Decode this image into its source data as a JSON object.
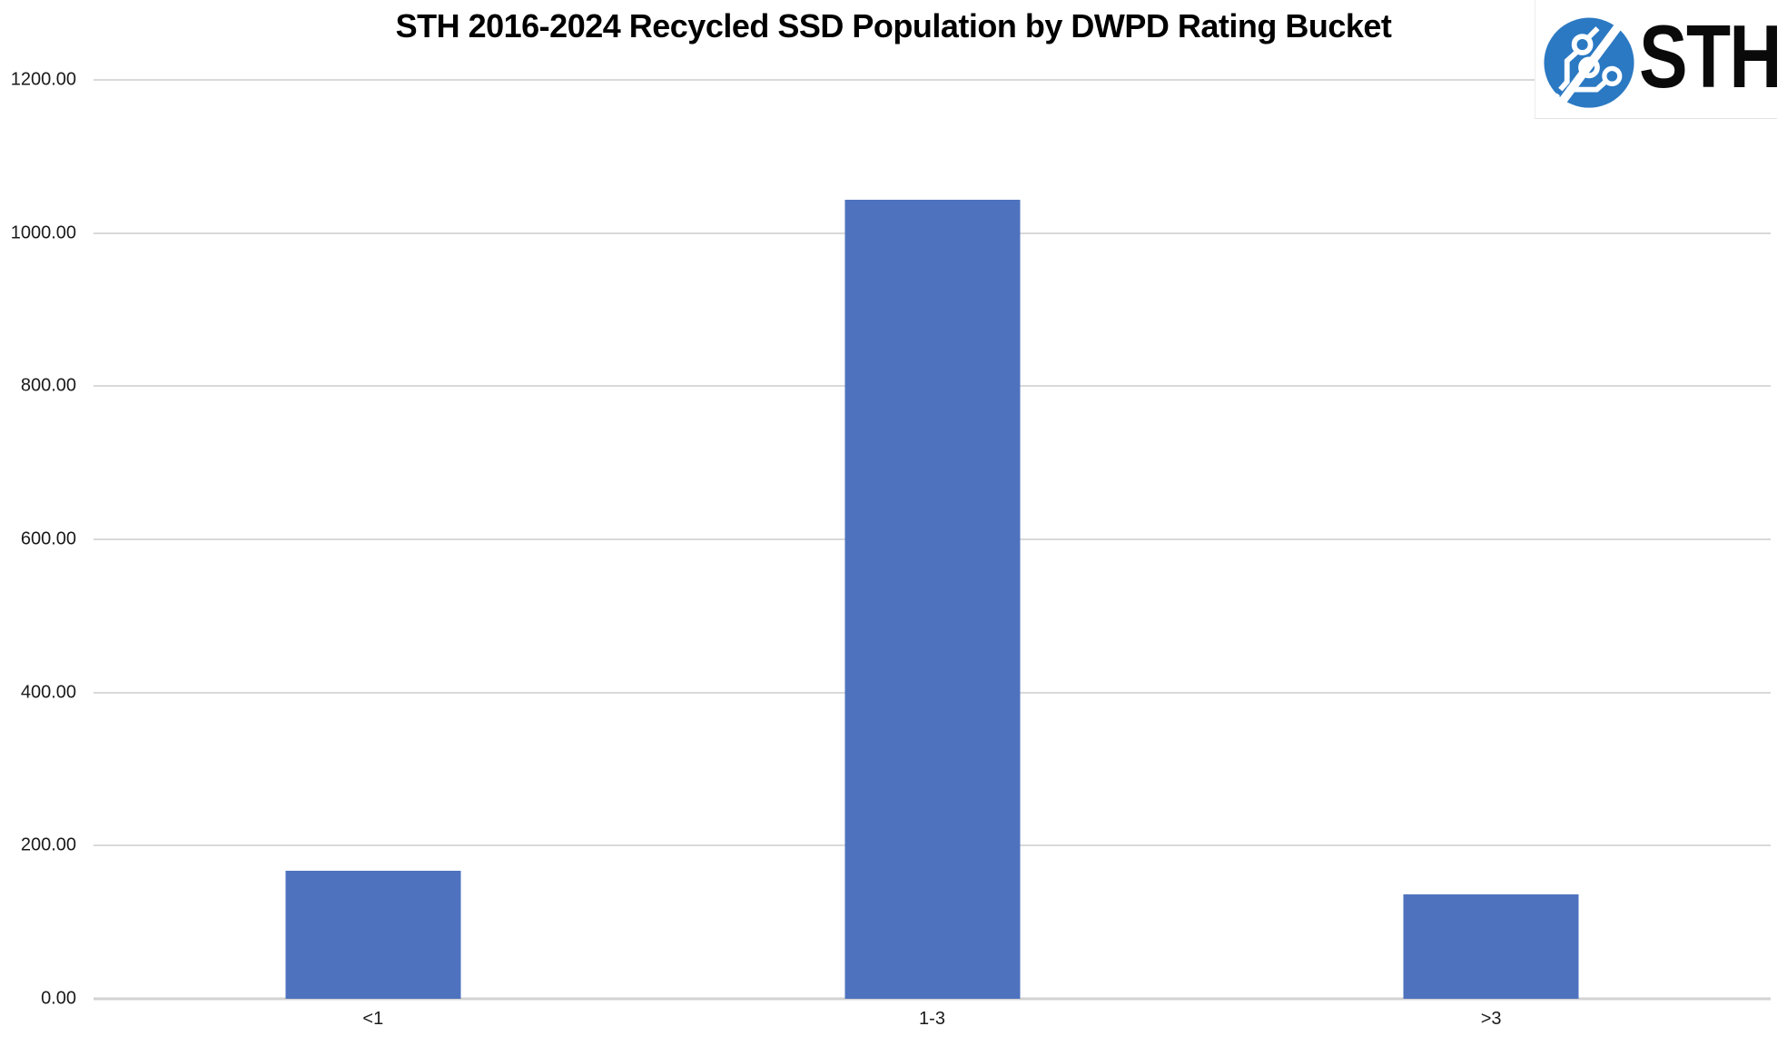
{
  "page": {
    "background": "#ffffff"
  },
  "header": {
    "title": "STH 2016-2024 Recycled SSD Population by DWPD Rating Bucket"
  },
  "logo": {
    "text": "STH",
    "circle_color": "#2B79C3",
    "trace_color": "#ffffff",
    "text_color": "#0a0a0a"
  },
  "chart_data": {
    "type": "bar",
    "title": "STH 2016-2024 Recycled SSD Population by DWPD Rating Bucket",
    "categories": [
      "<1",
      "1-3",
      ">3"
    ],
    "values": [
      167,
      1044,
      136
    ],
    "xlabel": "",
    "ylabel": "",
    "ylim": [
      0,
      1200
    ],
    "ytick_step": 200,
    "ytick_labels": [
      "0.00",
      "200.00",
      "400.00",
      "600.00",
      "800.00",
      "1000.00",
      "1200.00"
    ],
    "bar_color": "#4E72BE",
    "gridline_color": "#D9D9D9",
    "axis_color": "#D2D2D2",
    "grid": true,
    "legend_position": "none"
  }
}
